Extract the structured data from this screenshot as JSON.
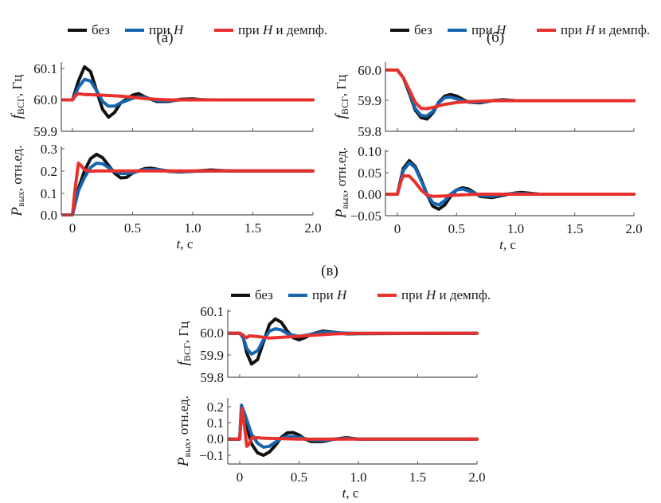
{
  "colors": {
    "bez": "#111111",
    "H": "#1565b0",
    "Hd": "#e8302c",
    "axis": "#555555"
  },
  "legend": [
    {
      "key": "bez",
      "label_a": "без",
      "label_b": "",
      "italic": ""
    },
    {
      "key": "H",
      "label_a": "при ",
      "italic": "H",
      "label_b": ""
    },
    {
      "key": "Hd",
      "label_a": "при ",
      "italic": "H",
      "label_b": " и демпф."
    }
  ],
  "xlabel_italic": "t",
  "xlabel_rest": ", с",
  "chart_data": [
    {
      "type": "line",
      "panel": "(a)",
      "title": "(а)",
      "xlabel": "t, с",
      "xticks": [
        "0",
        "0.5",
        "1.0",
        "1.5",
        "2.0"
      ],
      "subplots": [
        {
          "ylabel": "f_ВСГ, Гц",
          "ylim": [
            59.9,
            60.1
          ],
          "yticks": [
            "59.9",
            "60.0",
            "60.1"
          ],
          "series": [
            {
              "name": "без",
              "key": "bez",
              "x": [
                -0.1,
                0,
                0.05,
                0.1,
                0.15,
                0.2,
                0.25,
                0.3,
                0.35,
                0.4,
                0.5,
                0.55,
                0.6,
                0.7,
                0.8,
                0.9,
                1.0,
                1.1,
                1.2,
                2.0
              ],
              "values": [
                60.0,
                60.0,
                60.06,
                60.105,
                60.09,
                60.03,
                59.97,
                59.945,
                59.96,
                59.99,
                60.015,
                60.02,
                60.01,
                59.995,
                59.995,
                60.002,
                60.003,
                60.0,
                60.0,
                60.0
              ]
            },
            {
              "name": "при H",
              "key": "H",
              "x": [
                -0.1,
                0,
                0.05,
                0.1,
                0.15,
                0.2,
                0.25,
                0.3,
                0.35,
                0.4,
                0.5,
                0.55,
                0.6,
                0.7,
                0.8,
                0.9,
                1.0,
                1.2,
                2.0
              ],
              "values": [
                60.0,
                60.0,
                60.04,
                60.065,
                60.06,
                60.03,
                59.995,
                59.98,
                59.98,
                59.99,
                60.005,
                60.01,
                60.008,
                59.998,
                59.997,
                60.0,
                60.001,
                60.0,
                60.0
              ]
            },
            {
              "name": "при H и демпф.",
              "key": "Hd",
              "x": [
                -0.1,
                0,
                0.03,
                0.05,
                0.1,
                0.2,
                0.3,
                0.4,
                0.5,
                0.6,
                0.7,
                0.8,
                1.0,
                2.0
              ],
              "values": [
                60.0,
                60.0,
                60.015,
                60.02,
                60.017,
                60.016,
                60.014,
                60.012,
                60.008,
                60.004,
                60.002,
                60.0,
                60.0,
                60.0
              ]
            }
          ]
        },
        {
          "ylabel": "P_вых, отн.ед.",
          "ylim": [
            0.0,
            0.3
          ],
          "yticks": [
            "0.0",
            "0.1",
            "0.2",
            "0.3"
          ],
          "series": [
            {
              "name": "без",
              "key": "bez",
              "x": [
                -0.1,
                0,
                0.05,
                0.1,
                0.15,
                0.2,
                0.25,
                0.3,
                0.35,
                0.4,
                0.45,
                0.5,
                0.6,
                0.65,
                0.7,
                0.8,
                0.9,
                1.0,
                1.15,
                1.3,
                2.0
              ],
              "values": [
                0.0,
                0.0,
                0.12,
                0.2,
                0.255,
                0.275,
                0.26,
                0.225,
                0.19,
                0.168,
                0.17,
                0.19,
                0.21,
                0.212,
                0.208,
                0.198,
                0.195,
                0.198,
                0.204,
                0.2,
                0.2
              ]
            },
            {
              "name": "при H",
              "key": "H",
              "x": [
                -0.1,
                0,
                0.05,
                0.1,
                0.15,
                0.2,
                0.25,
                0.3,
                0.35,
                0.4,
                0.45,
                0.5,
                0.6,
                0.7,
                0.8,
                0.9,
                1.0,
                1.2,
                2.0
              ],
              "values": [
                0.0,
                0.0,
                0.11,
                0.17,
                0.215,
                0.235,
                0.232,
                0.215,
                0.198,
                0.188,
                0.187,
                0.192,
                0.206,
                0.206,
                0.2,
                0.197,
                0.198,
                0.2,
                0.2
              ]
            },
            {
              "name": "при H и демпф.",
              "key": "Hd",
              "x": [
                -0.1,
                0,
                0.02,
                0.05,
                0.07,
                0.1,
                0.15,
                0.2,
                0.4,
                0.6,
                1.0,
                2.0
              ],
              "values": [
                0.0,
                0.0,
                0.11,
                0.235,
                0.225,
                0.205,
                0.198,
                0.2,
                0.2,
                0.2,
                0.2,
                0.2
              ]
            }
          ]
        }
      ]
    },
    {
      "type": "line",
      "panel": "(б)",
      "title": "(б)",
      "xlabel": "t, с",
      "xticks": [
        "0",
        "0.5",
        "1.0",
        "1.5",
        "2.0"
      ],
      "subplots": [
        {
          "ylabel": "f_ВСГ, Гц",
          "ylim": [
            59.8,
            60.0
          ],
          "yticks": [
            "59.8",
            "59.9",
            "60.0"
          ],
          "series": [
            {
              "name": "без",
              "key": "bez",
              "x": [
                -0.1,
                0,
                0.05,
                0.1,
                0.15,
                0.2,
                0.25,
                0.3,
                0.35,
                0.4,
                0.45,
                0.5,
                0.55,
                0.6,
                0.7,
                0.8,
                0.9,
                1.0,
                2.0
              ],
              "values": [
                60.0,
                60.0,
                59.975,
                59.925,
                59.87,
                59.845,
                59.84,
                59.86,
                59.895,
                59.915,
                59.92,
                59.915,
                59.905,
                59.895,
                59.893,
                59.9,
                59.903,
                59.9,
                59.9
              ]
            },
            {
              "name": "при H",
              "key": "H",
              "x": [
                -0.1,
                0,
                0.05,
                0.1,
                0.15,
                0.2,
                0.25,
                0.3,
                0.35,
                0.4,
                0.45,
                0.5,
                0.6,
                0.7,
                0.8,
                0.9,
                1.0,
                2.0
              ],
              "values": [
                60.0,
                60.0,
                59.975,
                59.93,
                59.875,
                59.852,
                59.85,
                59.865,
                59.893,
                59.91,
                59.912,
                59.906,
                59.895,
                59.895,
                59.9,
                59.902,
                59.9,
                59.9
              ]
            },
            {
              "name": "при H и демпф.",
              "key": "Hd",
              "x": [
                -0.1,
                0,
                0.05,
                0.1,
                0.15,
                0.2,
                0.25,
                0.3,
                0.4,
                0.5,
                0.6,
                0.8,
                1.0,
                2.0
              ],
              "values": [
                60.0,
                60.0,
                59.975,
                59.935,
                59.895,
                59.875,
                59.874,
                59.878,
                59.888,
                59.894,
                59.897,
                59.9,
                59.9,
                59.9
              ]
            }
          ]
        },
        {
          "ylabel": "P_вых, отн.ед.",
          "ylim": [
            -0.05,
            0.1
          ],
          "yticks": [
            "-0.05",
            "0.00",
            "0.05",
            "0.10"
          ],
          "series": [
            {
              "name": "без",
              "key": "bez",
              "x": [
                -0.1,
                0,
                0.05,
                0.1,
                0.15,
                0.2,
                0.25,
                0.3,
                0.35,
                0.4,
                0.45,
                0.5,
                0.55,
                0.6,
                0.7,
                0.8,
                0.9,
                1.0,
                1.05,
                1.2,
                2.0
              ],
              "values": [
                0.0,
                0.0,
                0.06,
                0.078,
                0.065,
                0.035,
                0.0,
                -0.028,
                -0.035,
                -0.025,
                -0.005,
                0.01,
                0.015,
                0.012,
                -0.005,
                -0.008,
                -0.002,
                0.003,
                0.004,
                0.0,
                0.0
              ]
            },
            {
              "name": "при H",
              "key": "H",
              "x": [
                -0.1,
                0,
                0.05,
                0.1,
                0.15,
                0.2,
                0.25,
                0.3,
                0.35,
                0.4,
                0.45,
                0.5,
                0.55,
                0.6,
                0.7,
                0.8,
                0.9,
                1.0,
                1.2,
                2.0
              ],
              "values": [
                0.0,
                0.0,
                0.055,
                0.073,
                0.062,
                0.032,
                0.0,
                -0.02,
                -0.025,
                -0.015,
                0.0,
                0.01,
                0.012,
                0.008,
                -0.003,
                -0.005,
                0.0,
                0.002,
                0.0,
                0.0
              ]
            },
            {
              "name": "при H и демпф.",
              "key": "Hd",
              "x": [
                -0.1,
                0,
                0.03,
                0.05,
                0.1,
                0.15,
                0.2,
                0.25,
                0.3,
                0.4,
                0.5,
                0.7,
                1.0,
                2.0
              ],
              "values": [
                0.0,
                0.0,
                0.03,
                0.043,
                0.042,
                0.028,
                0.01,
                -0.002,
                -0.005,
                -0.004,
                -0.002,
                0.0,
                0.0,
                0.0
              ]
            }
          ]
        }
      ]
    },
    {
      "type": "line",
      "panel": "(в)",
      "title": "(в)",
      "xlabel": "t, с",
      "xticks": [
        "0",
        "0.5",
        "1.0",
        "1.5",
        "2.0"
      ],
      "subplots": [
        {
          "ylabel": "f_ВСГ, Гц",
          "ylim": [
            59.8,
            60.1
          ],
          "yticks": [
            "59.8",
            "59.9",
            "60.0",
            "60.1"
          ],
          "series": [
            {
              "name": "без",
              "key": "bez",
              "x": [
                -0.1,
                0,
                0.03,
                0.06,
                0.1,
                0.15,
                0.2,
                0.25,
                0.3,
                0.35,
                0.4,
                0.45,
                0.5,
                0.55,
                0.6,
                0.7,
                0.8,
                0.9,
                1.0,
                2.0
              ],
              "values": [
                60.0,
                60.0,
                59.98,
                59.91,
                59.86,
                59.88,
                59.96,
                60.04,
                60.065,
                60.05,
                60.01,
                59.98,
                59.97,
                59.98,
                59.995,
                60.01,
                60.004,
                59.997,
                59.998,
                60.0
              ]
            },
            {
              "name": "при H",
              "key": "H",
              "x": [
                -0.1,
                0,
                0.03,
                0.06,
                0.1,
                0.15,
                0.2,
                0.25,
                0.3,
                0.35,
                0.4,
                0.5,
                0.6,
                0.7,
                0.8,
                1.0,
                2.0
              ],
              "values": [
                60.0,
                60.0,
                59.98,
                59.93,
                59.905,
                59.92,
                59.97,
                60.01,
                60.02,
                60.015,
                59.998,
                59.985,
                59.995,
                60.005,
                60.002,
                59.999,
                60.0
              ]
            },
            {
              "name": "при H и демпф.",
              "key": "Hd",
              "x": [
                -0.1,
                0,
                0.02,
                0.04,
                0.06,
                0.08,
                0.15,
                0.25,
                0.4,
                0.6,
                0.8,
                1.0,
                2.0
              ],
              "values": [
                60.0,
                60.0,
                59.995,
                59.985,
                59.98,
                59.988,
                59.985,
                59.978,
                59.983,
                59.99,
                59.997,
                60.0,
                60.0
              ]
            }
          ]
        },
        {
          "ylabel": "P_вых, отн.ед.",
          "ylim": [
            -0.15,
            0.25
          ],
          "yticks": [
            "-0.1",
            "0.0",
            "0.1",
            "0.2"
          ],
          "series": [
            {
              "name": "без",
              "key": "bez",
              "x": [
                -0.1,
                0,
                0.015,
                0.05,
                0.1,
                0.15,
                0.2,
                0.25,
                0.3,
                0.35,
                0.4,
                0.45,
                0.5,
                0.55,
                0.6,
                0.7,
                0.8,
                0.9,
                1.0,
                2.0
              ],
              "values": [
                0.0,
                0.0,
                0.2,
                0.1,
                -0.03,
                -0.085,
                -0.1,
                -0.08,
                -0.04,
                0.01,
                0.038,
                0.04,
                0.025,
                0.0,
                -0.015,
                -0.015,
                0.0,
                0.008,
                0.0,
                0.0
              ]
            },
            {
              "name": "при H",
              "key": "H",
              "x": [
                -0.1,
                0,
                0.015,
                0.05,
                0.1,
                0.15,
                0.2,
                0.25,
                0.3,
                0.35,
                0.4,
                0.45,
                0.5,
                0.6,
                0.7,
                0.8,
                0.9,
                1.0,
                2.0
              ],
              "values": [
                0.0,
                0.0,
                0.21,
                0.14,
                0.03,
                -0.025,
                -0.05,
                -0.045,
                -0.02,
                0.005,
                0.015,
                0.015,
                0.01,
                -0.005,
                -0.008,
                0.0,
                0.004,
                0.0,
                0.0
              ]
            },
            {
              "name": "при H и демпф.",
              "key": "Hd",
              "x": [
                -0.1,
                0,
                0.01,
                0.02,
                0.04,
                0.06,
                0.08,
                0.1,
                0.12,
                0.2,
                0.5,
                2.0
              ],
              "values": [
                0.0,
                0.0,
                0.1,
                0.19,
                0.08,
                -0.045,
                -0.03,
                0.005,
                0.01,
                0.005,
                0.0,
                0.0
              ]
            }
          ]
        }
      ]
    }
  ]
}
